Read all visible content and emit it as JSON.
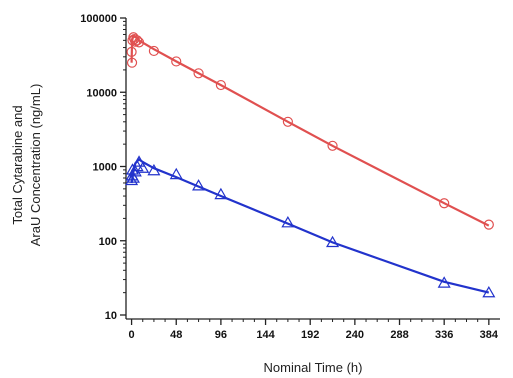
{
  "chart_data": {
    "type": "scatter",
    "xlabel": "Nominal Time (h)",
    "ylabel_lines": [
      "Total Cytarabine and",
      "AraU Concentration (ng/mL)"
    ],
    "x_ticks": [
      0,
      48,
      96,
      144,
      192,
      240,
      288,
      336,
      384
    ],
    "y_ticks": [
      10,
      100,
      1000,
      10000,
      100000
    ],
    "y_tick_labels": [
      "10",
      "100",
      "1000",
      "10000",
      "100000"
    ],
    "xlim": [
      -6,
      396
    ],
    "ylim": [
      10,
      100000
    ],
    "y_scale": "log",
    "grid": false,
    "legend": "none",
    "series": [
      {
        "color": "#e05050",
        "marker": "circle",
        "observed": [
          {
            "x": 0,
            "y": 35000
          },
          {
            "x": 0.5,
            "y": 25000
          },
          {
            "x": 1,
            "y": 50000
          },
          {
            "x": 2,
            "y": 55000
          },
          {
            "x": 3,
            "y": 52000
          },
          {
            "x": 4,
            "y": 48000
          },
          {
            "x": 6,
            "y": 50000
          },
          {
            "x": 8,
            "y": 47000
          },
          {
            "x": 24,
            "y": 36000
          },
          {
            "x": 48,
            "y": 26000
          },
          {
            "x": 72,
            "y": 18000
          },
          {
            "x": 96,
            "y": 12500
          },
          {
            "x": 168,
            "y": 4000
          },
          {
            "x": 216,
            "y": 1900
          },
          {
            "x": 336,
            "y": 320
          },
          {
            "x": 384,
            "y": 165
          }
        ],
        "fit": [
          {
            "x": 0,
            "y": 25000
          },
          {
            "x": 0.5,
            "y": 45000
          },
          {
            "x": 1,
            "y": 55000
          },
          {
            "x": 2,
            "y": 58000
          },
          {
            "x": 4,
            "y": 56000
          },
          {
            "x": 8,
            "y": 50000
          },
          {
            "x": 24,
            "y": 38000
          },
          {
            "x": 48,
            "y": 26000
          },
          {
            "x": 96,
            "y": 12500
          },
          {
            "x": 168,
            "y": 4000
          },
          {
            "x": 216,
            "y": 1900
          },
          {
            "x": 336,
            "y": 320
          },
          {
            "x": 384,
            "y": 160
          }
        ]
      },
      {
        "color": "#2233cc",
        "marker": "triangle",
        "observed": [
          {
            "x": 0,
            "y": 650
          },
          {
            "x": 0.5,
            "y": 750
          },
          {
            "x": 1,
            "y": 900
          },
          {
            "x": 2,
            "y": 700
          },
          {
            "x": 4,
            "y": 850
          },
          {
            "x": 6,
            "y": 1000
          },
          {
            "x": 8,
            "y": 1150
          },
          {
            "x": 12,
            "y": 950
          },
          {
            "x": 24,
            "y": 880
          },
          {
            "x": 48,
            "y": 780
          },
          {
            "x": 72,
            "y": 550
          },
          {
            "x": 96,
            "y": 420
          },
          {
            "x": 168,
            "y": 175
          },
          {
            "x": 216,
            "y": 95
          },
          {
            "x": 336,
            "y": 27
          },
          {
            "x": 384,
            "y": 20
          }
        ],
        "fit": [
          {
            "x": 0,
            "y": 600
          },
          {
            "x": 2,
            "y": 850
          },
          {
            "x": 4,
            "y": 1100
          },
          {
            "x": 8,
            "y": 1250
          },
          {
            "x": 12,
            "y": 1150
          },
          {
            "x": 24,
            "y": 950
          },
          {
            "x": 48,
            "y": 720
          },
          {
            "x": 96,
            "y": 400
          },
          {
            "x": 168,
            "y": 170
          },
          {
            "x": 216,
            "y": 95
          },
          {
            "x": 336,
            "y": 28
          },
          {
            "x": 384,
            "y": 20
          }
        ]
      }
    ]
  }
}
